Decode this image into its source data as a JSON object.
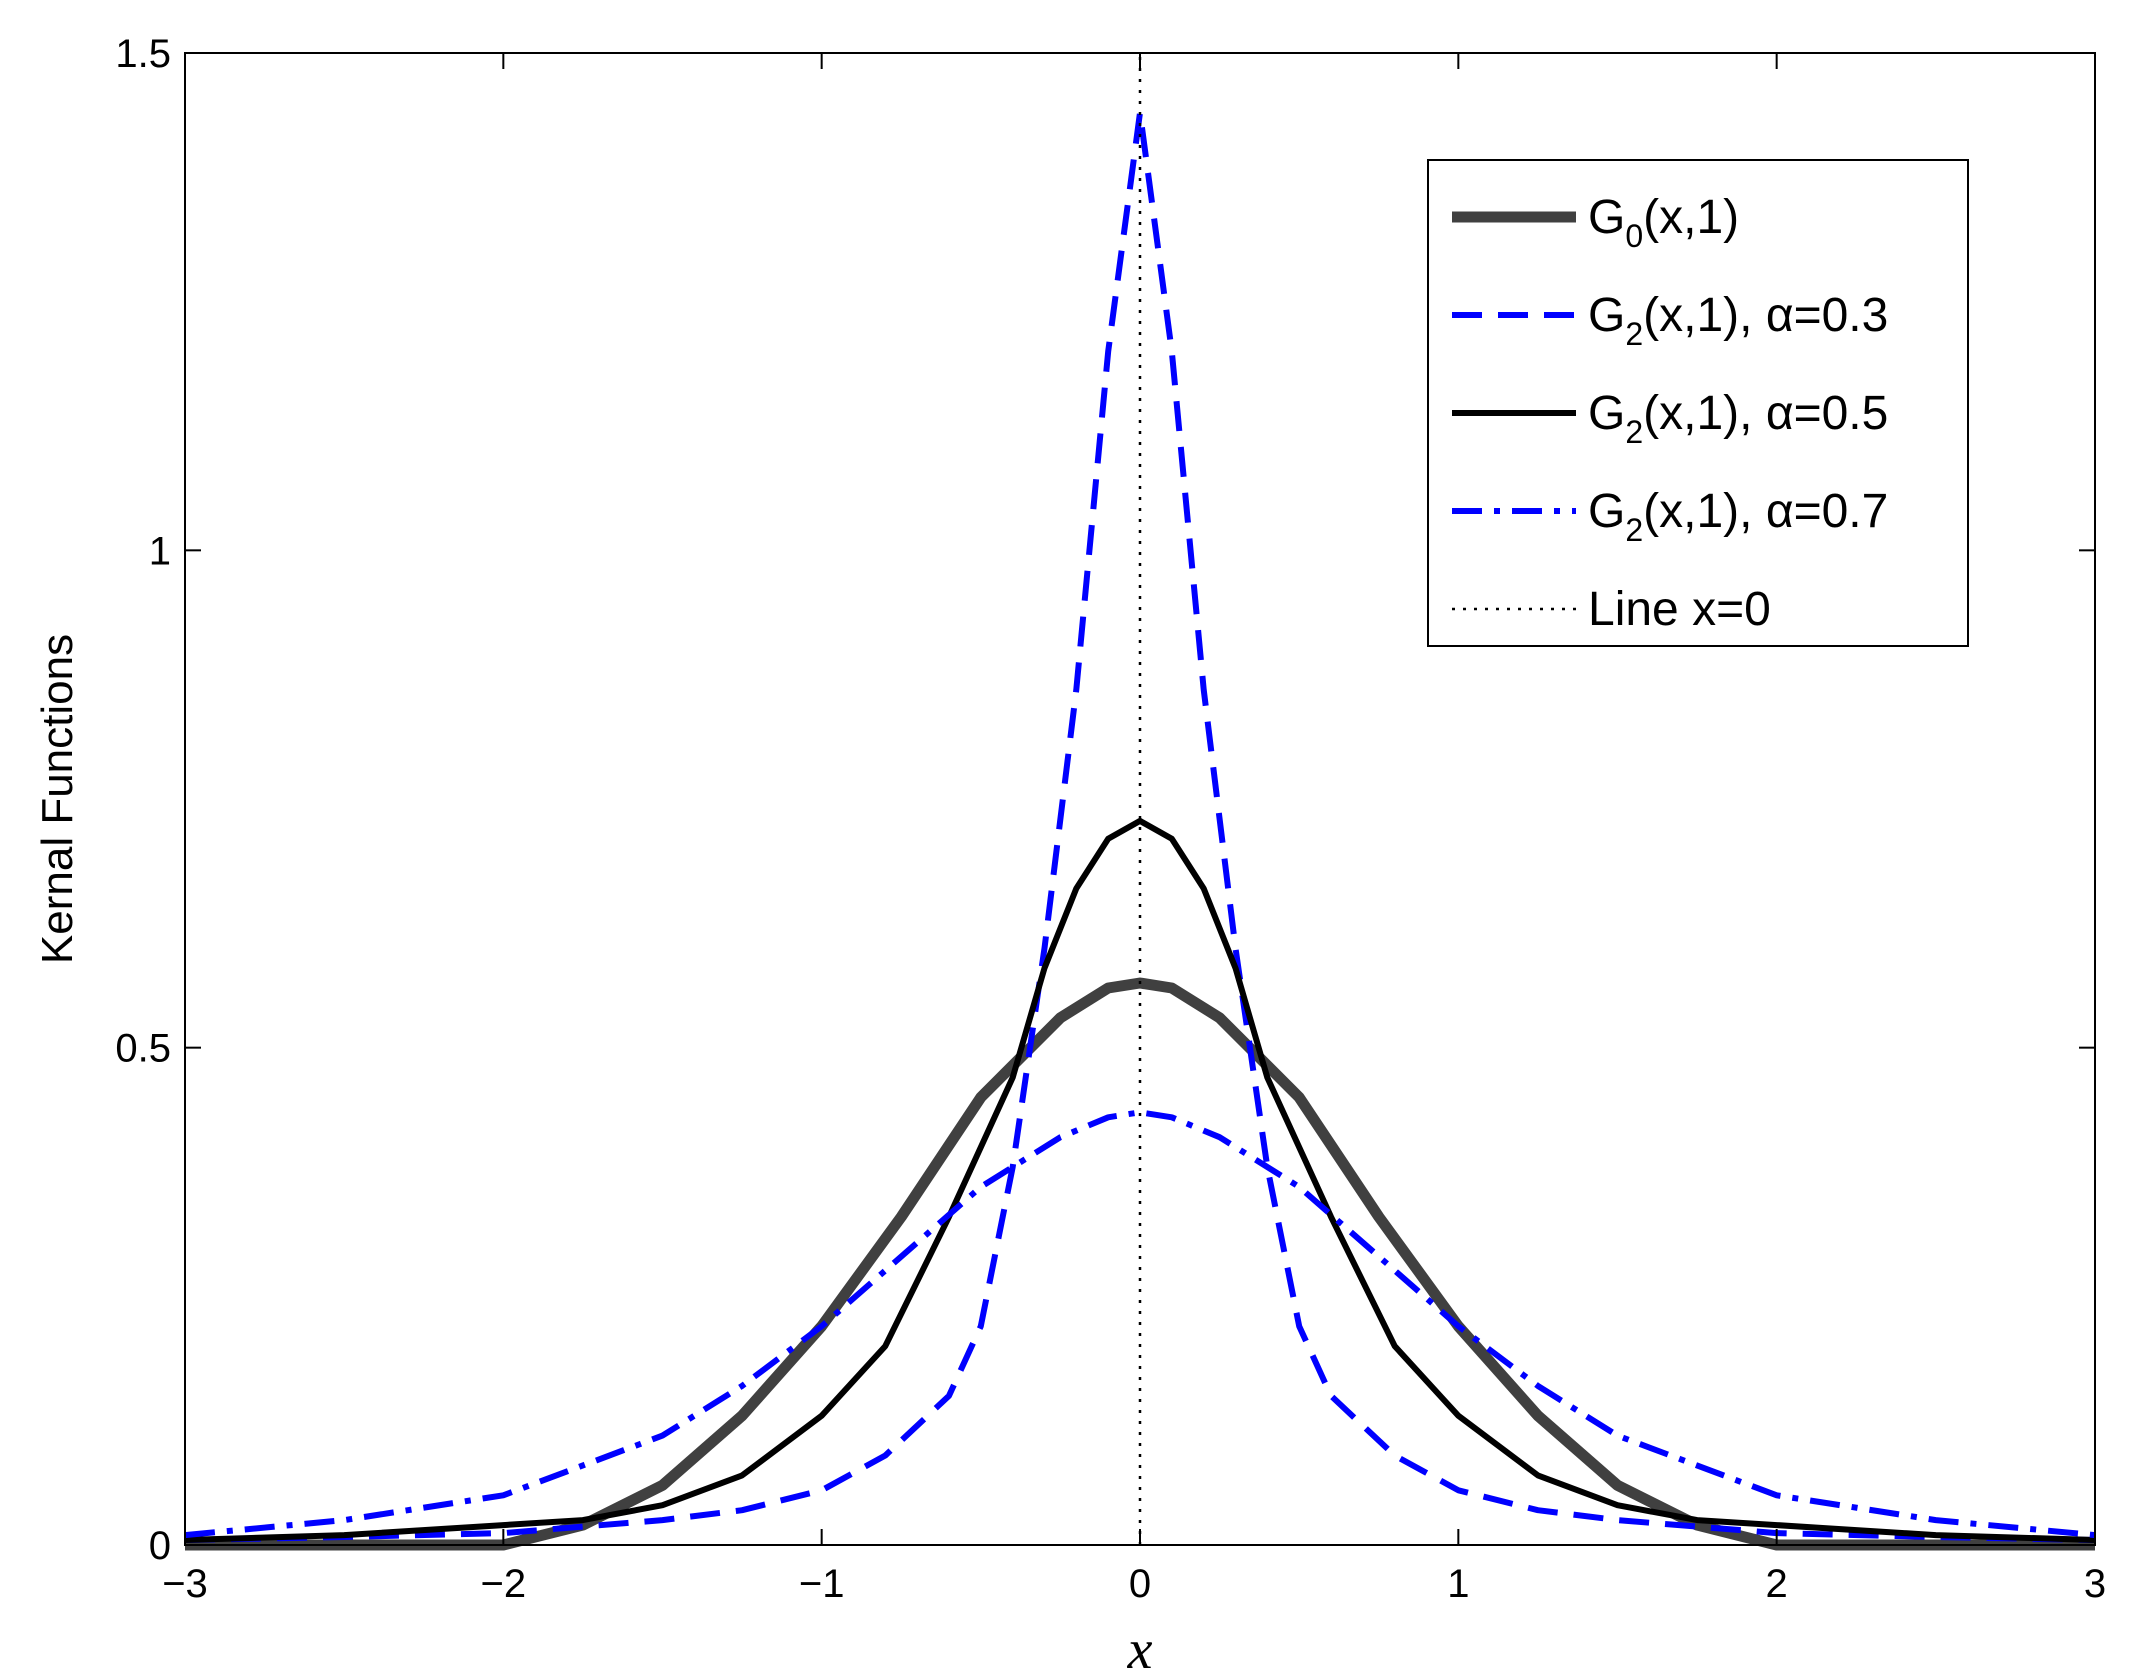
{
  "chart_data": {
    "type": "line",
    "title": "",
    "xlabel": "x",
    "ylabel": "Kernal Functions",
    "xlim": [
      -3,
      3
    ],
    "ylim": [
      0,
      1.5
    ],
    "xticks": [
      -3,
      -2,
      -1,
      0,
      1,
      2,
      3
    ],
    "xtick_labels": [
      "−3",
      "−2",
      "−1",
      "0",
      "1",
      "2",
      "3"
    ],
    "yticks": [
      0,
      0.5,
      1,
      1.5
    ],
    "ytick_labels": [
      "0",
      "0.5",
      "1",
      "1.5"
    ],
    "grid": false,
    "legend_position": "top-right",
    "series": [
      {
        "name": "G0(x,1)",
        "label_main": "G",
        "label_sub": "0",
        "label_rest": "(x,1)",
        "color": "#404040",
        "style": "solid",
        "width": "thick",
        "points": [
          [
            -3,
            0.0
          ],
          [
            -2.5,
            0.0
          ],
          [
            -2,
            0.0
          ],
          [
            -1.75,
            0.02
          ],
          [
            -1.5,
            0.06
          ],
          [
            -1.25,
            0.13
          ],
          [
            -1,
            0.22
          ],
          [
            -0.75,
            0.33
          ],
          [
            -0.5,
            0.45
          ],
          [
            -0.25,
            0.53
          ],
          [
            -0.1,
            0.56
          ],
          [
            0,
            0.565
          ],
          [
            0.1,
            0.56
          ],
          [
            0.25,
            0.53
          ],
          [
            0.5,
            0.45
          ],
          [
            0.75,
            0.33
          ],
          [
            1,
            0.22
          ],
          [
            1.25,
            0.13
          ],
          [
            1.5,
            0.06
          ],
          [
            1.75,
            0.02
          ],
          [
            2,
            0.0
          ],
          [
            2.5,
            0.0
          ],
          [
            3,
            0.0
          ]
        ]
      },
      {
        "name": "G2(x,1), α=0.3",
        "label_main": "G",
        "label_sub": "2",
        "label_rest": "(x,1), α=0.3",
        "color": "#0000ff",
        "style": "dashed",
        "width": "normal",
        "points": [
          [
            -3,
            0.005
          ],
          [
            -2.5,
            0.008
          ],
          [
            -2,
            0.012
          ],
          [
            -1.5,
            0.025
          ],
          [
            -1.25,
            0.035
          ],
          [
            -1,
            0.055
          ],
          [
            -0.8,
            0.09
          ],
          [
            -0.6,
            0.15
          ],
          [
            -0.5,
            0.22
          ],
          [
            -0.4,
            0.38
          ],
          [
            -0.3,
            0.6
          ],
          [
            -0.2,
            0.86
          ],
          [
            -0.1,
            1.2
          ],
          [
            0,
            1.44
          ],
          [
            0.1,
            1.2
          ],
          [
            0.2,
            0.86
          ],
          [
            0.3,
            0.6
          ],
          [
            0.4,
            0.38
          ],
          [
            0.5,
            0.22
          ],
          [
            0.6,
            0.15
          ],
          [
            0.8,
            0.09
          ],
          [
            1,
            0.055
          ],
          [
            1.25,
            0.035
          ],
          [
            1.5,
            0.025
          ],
          [
            2,
            0.012
          ],
          [
            2.5,
            0.008
          ],
          [
            3,
            0.005
          ]
        ]
      },
      {
        "name": "G2(x,1), α=0.5",
        "label_main": "G",
        "label_sub": "2",
        "label_rest": "(x,1), α=0.5",
        "color": "#000000",
        "style": "solid",
        "width": "normal",
        "points": [
          [
            -3,
            0.005
          ],
          [
            -2.5,
            0.01
          ],
          [
            -2,
            0.02
          ],
          [
            -1.75,
            0.025
          ],
          [
            -1.5,
            0.04
          ],
          [
            -1.25,
            0.07
          ],
          [
            -1,
            0.13
          ],
          [
            -0.8,
            0.2
          ],
          [
            -0.6,
            0.33
          ],
          [
            -0.4,
            0.47
          ],
          [
            -0.3,
            0.58
          ],
          [
            -0.2,
            0.66
          ],
          [
            -0.1,
            0.71
          ],
          [
            0,
            0.728
          ],
          [
            0.1,
            0.71
          ],
          [
            0.2,
            0.66
          ],
          [
            0.3,
            0.58
          ],
          [
            0.4,
            0.47
          ],
          [
            0.6,
            0.33
          ],
          [
            0.8,
            0.2
          ],
          [
            1,
            0.13
          ],
          [
            1.25,
            0.07
          ],
          [
            1.5,
            0.04
          ],
          [
            1.75,
            0.025
          ],
          [
            2,
            0.02
          ],
          [
            2.5,
            0.01
          ],
          [
            3,
            0.005
          ]
        ]
      },
      {
        "name": "G2(x,1), α=0.7",
        "label_main": "G",
        "label_sub": "2",
        "label_rest": "(x,1), α=0.7",
        "color": "#0000ff",
        "style": "dashdot",
        "width": "normal",
        "points": [
          [
            -3,
            0.01
          ],
          [
            -2.5,
            0.025
          ],
          [
            -2,
            0.05
          ],
          [
            -1.5,
            0.11
          ],
          [
            -1.25,
            0.16
          ],
          [
            -1,
            0.22
          ],
          [
            -0.75,
            0.29
          ],
          [
            -0.5,
            0.36
          ],
          [
            -0.25,
            0.41
          ],
          [
            -0.1,
            0.43
          ],
          [
            0,
            0.435
          ],
          [
            0.1,
            0.43
          ],
          [
            0.25,
            0.41
          ],
          [
            0.5,
            0.36
          ],
          [
            0.75,
            0.29
          ],
          [
            1,
            0.22
          ],
          [
            1.25,
            0.16
          ],
          [
            1.5,
            0.11
          ],
          [
            2,
            0.05
          ],
          [
            2.5,
            0.025
          ],
          [
            3,
            0.01
          ]
        ]
      },
      {
        "name": "Line x=0",
        "label_main": "Line x=0",
        "label_sub": "",
        "label_rest": "",
        "color": "#000000",
        "style": "dotted",
        "width": "thin",
        "points": [
          [
            0,
            0
          ],
          [
            0,
            1.5
          ]
        ]
      }
    ]
  }
}
